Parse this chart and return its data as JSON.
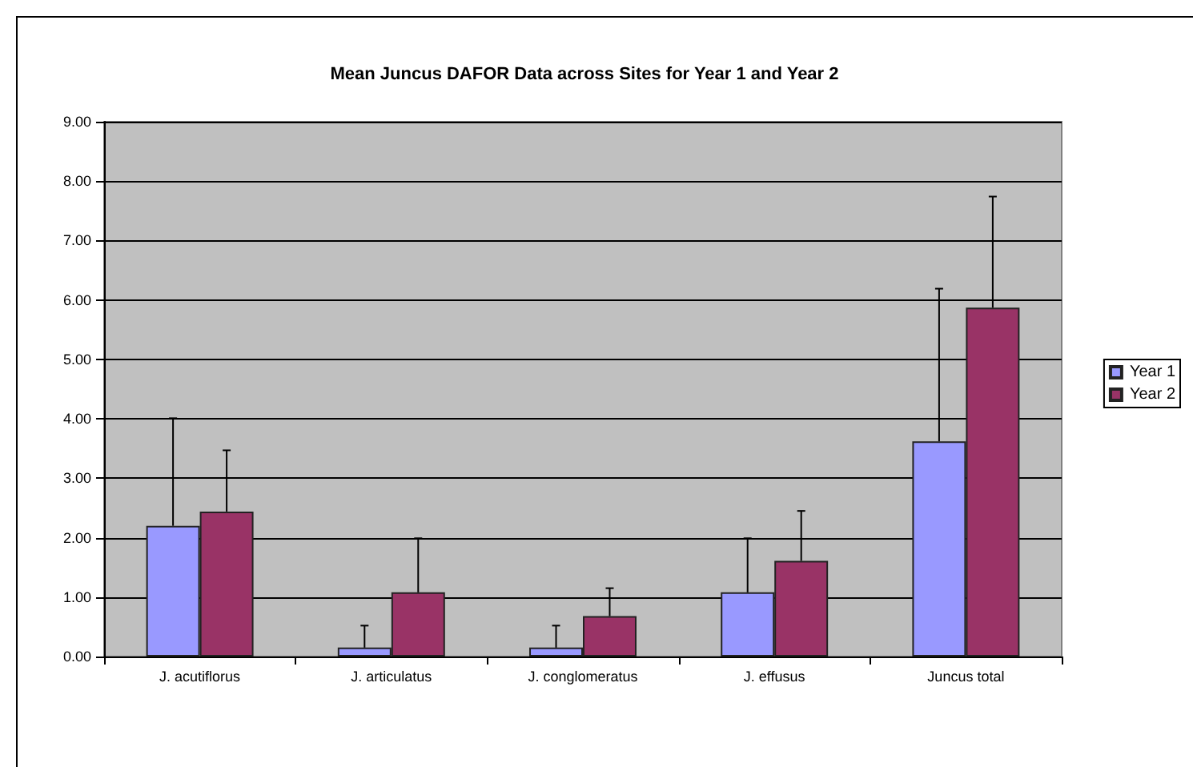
{
  "chart_data": {
    "type": "bar",
    "title": "Mean Juncus DAFOR Data across Sites for Year 1 and Year 2",
    "categories": [
      "J. acutiflorus",
      "J. articulatus",
      "J. conglomeratus",
      "J. effusus",
      "Juncus total"
    ],
    "series": [
      {
        "name": "Year 1",
        "color": "#9999ff",
        "values": [
          2.2,
          0.15,
          0.15,
          1.08,
          3.62
        ],
        "errors": [
          [
            2.2,
            4.01
          ],
          [
            0.15,
            0.52
          ],
          [
            0.15,
            0.52
          ],
          [
            1.08,
            1.99
          ],
          [
            3.62,
            6.19
          ]
        ]
      },
      {
        "name": "Year 2",
        "color": "#993366",
        "values": [
          2.44,
          1.08,
          0.68,
          1.61,
          5.87
        ],
        "errors": [
          [
            2.44,
            3.47
          ],
          [
            1.08,
            1.99
          ],
          [
            0.68,
            1.15
          ],
          [
            1.61,
            2.45
          ],
          [
            5.87,
            7.74
          ]
        ]
      }
    ],
    "ylim": [
      0,
      9
    ],
    "yticks": [
      {
        "value": 0,
        "label": "0.00"
      },
      {
        "value": 1,
        "label": "1.00"
      },
      {
        "value": 2,
        "label": "2.00"
      },
      {
        "value": 3,
        "label": "3.00"
      },
      {
        "value": 4,
        "label": "4.00"
      },
      {
        "value": 5,
        "label": "5.00"
      },
      {
        "value": 6,
        "label": "6.00"
      },
      {
        "value": 7,
        "label": "7.00"
      },
      {
        "value": 8,
        "label": "8.00"
      },
      {
        "value": 9,
        "label": "9.00"
      }
    ],
    "grid": "y",
    "legend": "right"
  }
}
